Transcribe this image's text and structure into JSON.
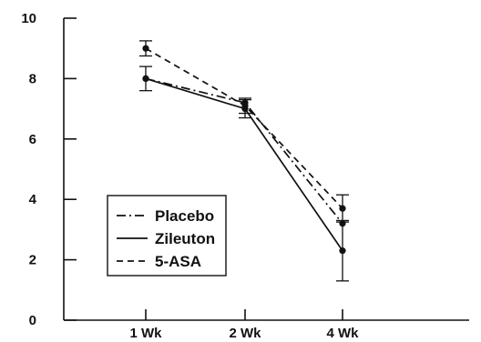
{
  "chart_data": {
    "type": "line",
    "title": "",
    "xlabel": "",
    "ylabel": "",
    "categories": [
      "1 Wk",
      "2 Wk",
      "4 Wk"
    ],
    "ylim": [
      0,
      10
    ],
    "yticks": [
      "0",
      "2",
      "4",
      "6",
      "8",
      "10"
    ],
    "grid": false,
    "legend_position": "lower-left",
    "series": [
      {
        "name": "Placebo",
        "style": "dash-dot",
        "values": [
          8.0,
          7.2,
          3.2
        ],
        "error": [
          null,
          null,
          null
        ]
      },
      {
        "name": "Zileuton",
        "style": "solid",
        "values": [
          8.0,
          7.0,
          2.3
        ],
        "error": [
          0.4,
          0.3,
          1.0
        ]
      },
      {
        "name": "5-ASA",
        "style": "dashed",
        "values": [
          9.0,
          7.1,
          3.7
        ],
        "error": [
          0.25,
          0.25,
          0.45
        ]
      }
    ],
    "colors": {
      "ink": "#111111",
      "background": "#ffffff"
    }
  }
}
